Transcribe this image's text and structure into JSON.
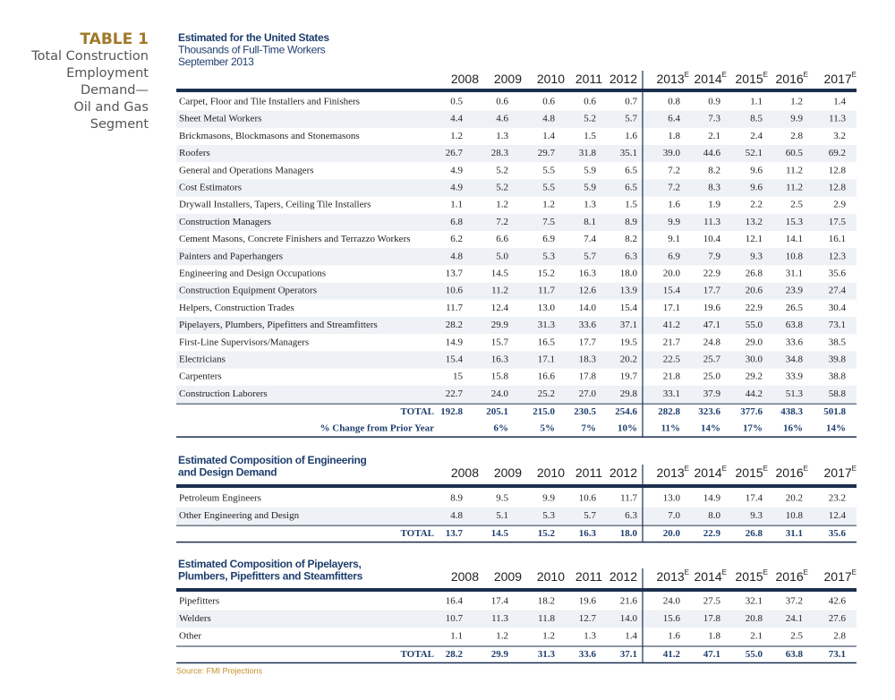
{
  "sidebar": {
    "label": "TABLE 1",
    "title_lines": [
      "Total Construction",
      "Employment",
      "Demand—",
      "Oil and Gas",
      "Segment"
    ]
  },
  "sections": [
    {
      "title_lines": [
        "Estimated for the United States",
        "Thousands of Full-Time Workers",
        "September 2013"
      ],
      "columns": [
        {
          "year": "2008"
        },
        {
          "year": "2009"
        },
        {
          "year": "2010"
        },
        {
          "year": "2011"
        },
        {
          "year": "2012"
        },
        {
          "year": "2013",
          "sup": "E"
        },
        {
          "year": "2014",
          "sup": "E"
        },
        {
          "year": "2015",
          "sup": "E"
        },
        {
          "year": "2016",
          "sup": "E"
        },
        {
          "year": "2017",
          "sup": "E"
        }
      ],
      "rows": [
        {
          "label": "Carpet, Floor and Tile Installers and Finishers",
          "values": [
            "0.5",
            "0.6",
            "0.6",
            "0.6",
            "0.7",
            "0.8",
            "0.9",
            "1.1",
            "1.2",
            "1.4"
          ]
        },
        {
          "label": "Sheet Metal Workers",
          "values": [
            "4.4",
            "4.6",
            "4.8",
            "5.2",
            "5.7",
            "6.4",
            "7.3",
            "8.5",
            "9.9",
            "11.3"
          ]
        },
        {
          "label": "Brickmasons, Blockmasons and Stonemasons",
          "values": [
            "1.2",
            "1.3",
            "1.4",
            "1.5",
            "1.6",
            "1.8",
            "2.1",
            "2.4",
            "2.8",
            "3.2"
          ]
        },
        {
          "label": "Roofers",
          "values": [
            "26.7",
            "28.3",
            "29.7",
            "31.8",
            "35.1",
            "39.0",
            "44.6",
            "52.1",
            "60.5",
            "69.2"
          ]
        },
        {
          "label": "General and Operations Managers",
          "values": [
            "4.9",
            "5.2",
            "5.5",
            "5.9",
            "6.5",
            "7.2",
            "8.2",
            "9.6",
            "11.2",
            "12.8"
          ]
        },
        {
          "label": "Cost Estimators",
          "values": [
            "4.9",
            "5.2",
            "5.5",
            "5.9",
            "6.5",
            "7.2",
            "8.3",
            "9.6",
            "11.2",
            "12.8"
          ]
        },
        {
          "label": "Drywall Installers, Tapers, Ceiling Tile Installers",
          "values": [
            "1.1",
            "1.2",
            "1.2",
            "1.3",
            "1.5",
            "1.6",
            "1.9",
            "2.2",
            "2.5",
            "2.9"
          ]
        },
        {
          "label": "Construction Managers",
          "values": [
            "6.8",
            "7.2",
            "7.5",
            "8.1",
            "8.9",
            "9.9",
            "11.3",
            "13.2",
            "15.3",
            "17.5"
          ]
        },
        {
          "label": "Cement Masons, Concrete Finishers and Terrazzo Workers",
          "values": [
            "6.2",
            "6.6",
            "6.9",
            "7.4",
            "8.2",
            "9.1",
            "10.4",
            "12.1",
            "14.1",
            "16.1"
          ]
        },
        {
          "label": "Painters and Paperhangers",
          "values": [
            "4.8",
            "5.0",
            "5.3",
            "5.7",
            "6.3",
            "6.9",
            "7.9",
            "9.3",
            "10.8",
            "12.3"
          ]
        },
        {
          "label": "Engineering and Design Occupations",
          "values": [
            "13.7",
            "14.5",
            "15.2",
            "16.3",
            "18.0",
            "20.0",
            "22.9",
            "26.8",
            "31.1",
            "35.6"
          ]
        },
        {
          "label": "Construction Equipment Operators",
          "values": [
            "10.6",
            "11.2",
            "11.7",
            "12.6",
            "13.9",
            "15.4",
            "17.7",
            "20.6",
            "23.9",
            "27.4"
          ]
        },
        {
          "label": "Helpers, Construction Trades",
          "values": [
            "11.7",
            "12.4",
            "13.0",
            "14.0",
            "15.4",
            "17.1",
            "19.6",
            "22.9",
            "26.5",
            "30.4"
          ]
        },
        {
          "label": "Pipelayers, Plumbers, Pipefitters and Streamfitters",
          "values": [
            "28.2",
            "29.9",
            "31.3",
            "33.6",
            "37.1",
            "41.2",
            "47.1",
            "55.0",
            "63.8",
            "73.1"
          ]
        },
        {
          "label": "First-Line Supervisors/Managers",
          "values": [
            "14.9",
            "15.7",
            "16.5",
            "17.7",
            "19.5",
            "21.7",
            "24.8",
            "29.0",
            "33.6",
            "38.5"
          ]
        },
        {
          "label": "Electricians",
          "values": [
            "15.4",
            "16.3",
            "17.1",
            "18.3",
            "20.2",
            "22.5",
            "25.7",
            "30.0",
            "34.8",
            "39.8"
          ]
        },
        {
          "label": "Carpenters",
          "values": [
            "15",
            "15.8",
            "16.6",
            "17.8",
            "19.7",
            "21.8",
            "25.0",
            "29.2",
            "33.9",
            "38.8"
          ]
        },
        {
          "label": "Construction Laborers",
          "values": [
            "22.7",
            "24.0",
            "25.2",
            "27.0",
            "29.8",
            "33.1",
            "37.9",
            "44.2",
            "51.3",
            "58.8"
          ]
        }
      ],
      "total": {
        "label": "TOTAL",
        "values": [
          "192.8",
          "205.1",
          "215.0",
          "230.5",
          "254.6",
          "282.8",
          "323.6",
          "377.6",
          "438.3",
          "501.8"
        ]
      },
      "change": {
        "label": "% Change from Prior Year",
        "values": [
          null,
          "6%",
          "5%",
          "7%",
          "10%",
          "11%",
          "14%",
          "17%",
          "16%",
          "14%"
        ]
      }
    },
    {
      "title_lines": [
        "Estimated Composition of Engineering",
        "and Design Demand"
      ],
      "columns": [
        {
          "year": "2008"
        },
        {
          "year": "2009"
        },
        {
          "year": "2010"
        },
        {
          "year": "2011"
        },
        {
          "year": "2012"
        },
        {
          "year": "2013",
          "sup": "E"
        },
        {
          "year": "2014",
          "sup": "E"
        },
        {
          "year": "2015",
          "sup": "E"
        },
        {
          "year": "2016",
          "sup": "E"
        },
        {
          "year": "2017",
          "sup": "E"
        }
      ],
      "rows": [
        {
          "label": "Petroleum Engineers",
          "values": [
            "8.9",
            "9.5",
            "9.9",
            "10.6",
            "11.7",
            "13.0",
            "14.9",
            "17.4",
            "20.2",
            "23.2"
          ]
        },
        {
          "label": "Other Engineering and Design",
          "values": [
            "4.8",
            "5.1",
            "5.3",
            "5.7",
            "6.3",
            "7.0",
            "8.0",
            "9.3",
            "10.8",
            "12.4"
          ]
        }
      ],
      "total": {
        "label": "TOTAL",
        "values": [
          "13.7",
          "14.5",
          "15.2",
          "16.3",
          "18.0",
          "20.0",
          "22.9",
          "26.8",
          "31.1",
          "35.6"
        ]
      }
    },
    {
      "title_lines": [
        "Estimated Composition of Pipelayers,",
        "Plumbers, Pipefitters and Steamfitters"
      ],
      "columns": [
        {
          "year": "2008"
        },
        {
          "year": "2009"
        },
        {
          "year": "2010"
        },
        {
          "year": "2011"
        },
        {
          "year": "2012"
        },
        {
          "year": "2013",
          "sup": "E"
        },
        {
          "year": "2014",
          "sup": "E"
        },
        {
          "year": "2015",
          "sup": "E"
        },
        {
          "year": "2016",
          "sup": "E"
        },
        {
          "year": "2017",
          "sup": "E"
        }
      ],
      "rows": [
        {
          "label": "Pipefitters",
          "values": [
            "16.4",
            "17.4",
            "18.2",
            "19.6",
            "21.6",
            "24.0",
            "27.5",
            "32.1",
            "37.2",
            "42.6"
          ]
        },
        {
          "label": "Welders",
          "values": [
            "10.7",
            "11.3",
            "11.8",
            "12.7",
            "14.0",
            "15.6",
            "17.8",
            "20.8",
            "24.1",
            "27.6"
          ]
        },
        {
          "label": "Other",
          "values": [
            "1.1",
            "1.2",
            "1.2",
            "1.3",
            "1.4",
            "1.6",
            "1.8",
            "2.1",
            "2.5",
            "2.8"
          ]
        }
      ],
      "total": {
        "label": "TOTAL",
        "values": [
          "28.2",
          "29.9",
          "31.3",
          "33.6",
          "37.1",
          "41.2",
          "47.1",
          "55.0",
          "63.8",
          "73.1"
        ]
      }
    }
  ],
  "source": "Source: FMI Projections"
}
